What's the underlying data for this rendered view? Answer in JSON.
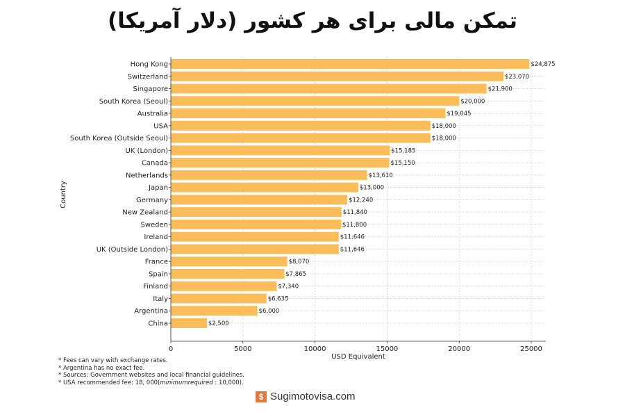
{
  "chart_data": {
    "type": "bar",
    "orientation": "horizontal",
    "title": "تمکن مالی برای هر کشور (دلار آمریکا)",
    "xlabel": "USD Equivalent",
    "ylabel": "Country",
    "xlim": [
      0,
      26000
    ],
    "xticks": [
      0,
      5000,
      10000,
      15000,
      20000,
      25000
    ],
    "grid": true,
    "bar_color": "#fbbd5a",
    "categories": [
      "Hong Kong",
      "Switzerland",
      "Singapore",
      "South Korea (Seoul)",
      "Australia",
      "USA",
      "South Korea (Outside Seoul)",
      "UK (London)",
      "Canada",
      "Netherlands",
      "Japan",
      "Germany",
      "New Zealand",
      "Sweden",
      "Ireland",
      "UK (Outside London)",
      "France",
      "Spain",
      "Finland",
      "Italy",
      "Argentina",
      "China"
    ],
    "values": [
      24875,
      23070,
      21900,
      20000,
      19045,
      18000,
      18000,
      15185,
      15150,
      13610,
      13000,
      12240,
      11840,
      11800,
      11646,
      11646,
      8070,
      7865,
      7340,
      6635,
      6000,
      2500
    ],
    "data_labels": [
      "$24,875",
      "$23,070",
      "$21,900",
      "$20,000",
      "$19,045",
      "$18,000",
      "$18,000",
      "$15,185",
      "$15,150",
      "$13,610",
      "$13,000",
      "$12,240",
      "$11,840",
      "$11,800",
      "$11,646",
      "$11,646",
      "$8,070",
      "$7,865",
      "$7,340",
      "$6,635",
      "$6,000",
      "$2,500"
    ]
  },
  "notes": {
    "line1": "* Fees can vary with exchange rates.",
    "line2": "* Argentina has no exact fee.",
    "line3": "* Sources: Government websites and local financial guidelines.",
    "line4_a": "* USA recommended fee: 18, 000(",
    "line4_italic": "minimumrequired",
    "line4_b": " : 10,000)."
  },
  "brand": {
    "name": "Sugimotovisa.com",
    "icon": "sugimoto-logo-icon",
    "color": "#e8743b"
  }
}
